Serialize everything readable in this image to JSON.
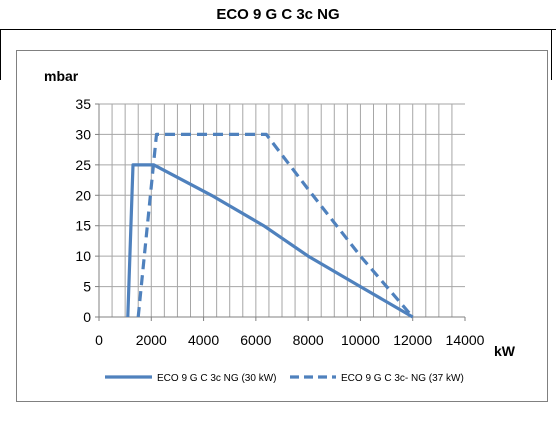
{
  "header": {
    "title": "ECO 9 G C 3c NG"
  },
  "chart_data": {
    "type": "line",
    "title": "",
    "xlabel": "kW",
    "ylabel": "mbar",
    "xlim": [
      0,
      14000
    ],
    "ylim": [
      0,
      35
    ],
    "xticks": [
      0,
      2000,
      4000,
      6000,
      8000,
      10000,
      12000,
      14000
    ],
    "yticks": [
      0,
      5,
      10,
      15,
      20,
      25,
      30,
      35
    ],
    "grid": true,
    "legend": "bottom",
    "series": [
      {
        "name": "ECO 9 G C 3c NG (30 kW)",
        "color": "#4f81bd",
        "dash": "solid",
        "x": [
          1100,
          1300,
          2100,
          4300,
          6300,
          8000,
          10000,
          12000
        ],
        "y": [
          0,
          25,
          25,
          20,
          15,
          10,
          5,
          0
        ]
      },
      {
        "name": "ECO 9  G C 3c- NG (37 kW)",
        "color": "#4f81bd",
        "dash": "dashed",
        "x": [
          1500,
          2200,
          6400,
          8000,
          10000,
          12000
        ],
        "y": [
          0,
          30,
          30,
          21,
          10,
          0
        ]
      }
    ]
  }
}
